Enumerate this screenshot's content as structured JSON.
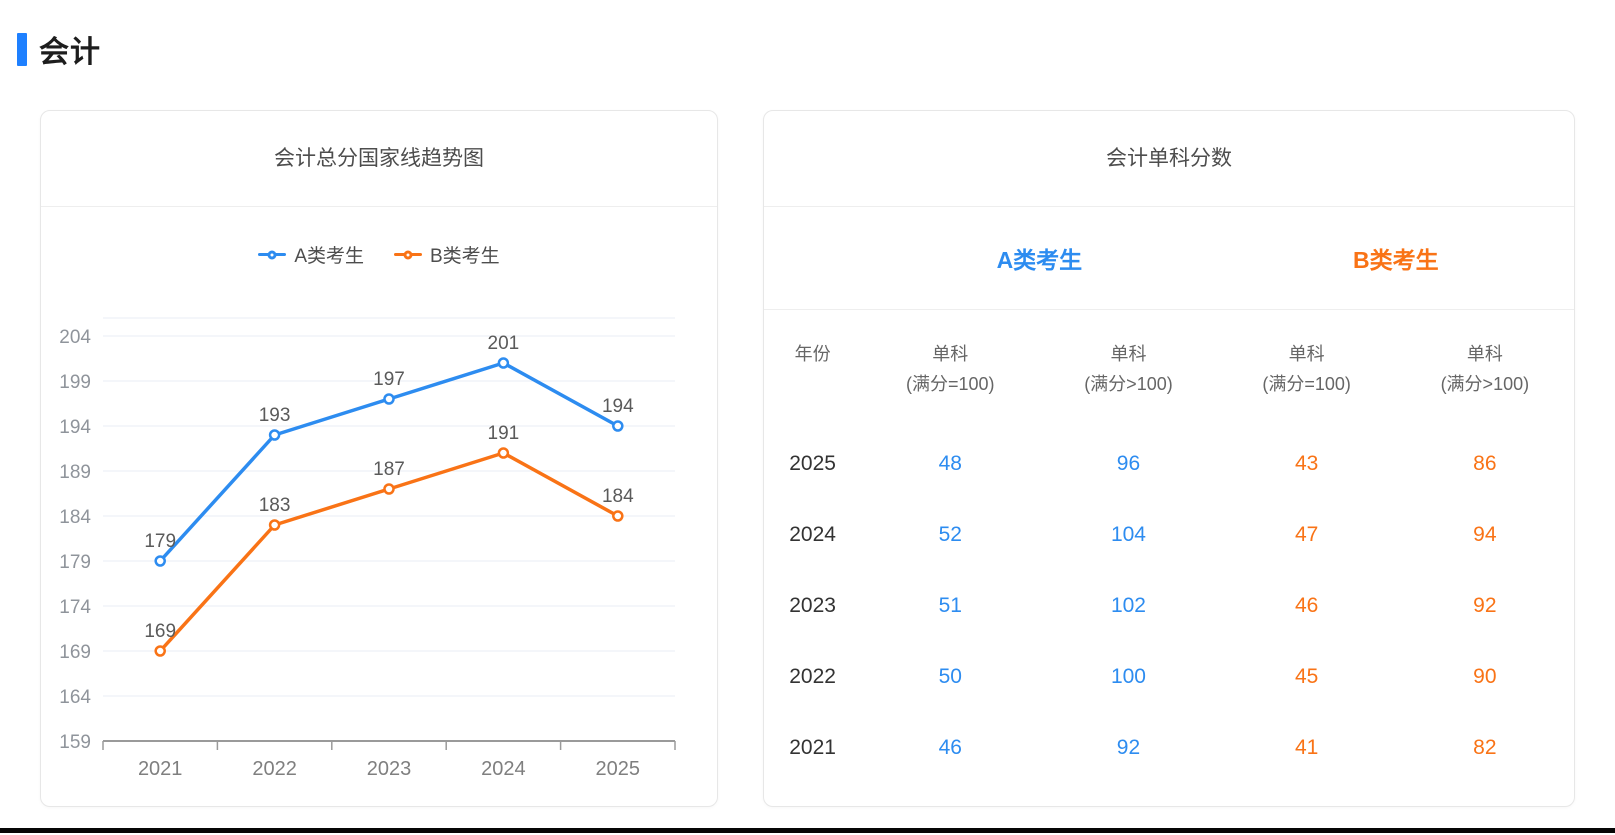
{
  "page": {
    "title": "会计",
    "accent_blue": "#1e80ff"
  },
  "chart_data": [
    {
      "type": "line",
      "title": "会计总分国家线趋势图",
      "categories": [
        "2021",
        "2022",
        "2023",
        "2024",
        "2025"
      ],
      "series": [
        {
          "name": "A类考生",
          "values": [
            179,
            193,
            197,
            201,
            194
          ],
          "color": "#2d8cf0"
        },
        {
          "name": "B类考生",
          "values": [
            169,
            183,
            187,
            191,
            184
          ],
          "color": "#f97316"
        }
      ],
      "xlabel": "",
      "ylabel": "",
      "ylim": [
        159,
        206
      ],
      "yticks": [
        159,
        164,
        169,
        174,
        179,
        184,
        189,
        194,
        199,
        204
      ],
      "grid": true,
      "legend_position": "top",
      "data_labels": true
    },
    {
      "type": "table",
      "title": "会计单科分数",
      "group_headers": [
        {
          "label": "A类考生",
          "color": "#2d8cf0"
        },
        {
          "label": "B类考生",
          "color": "#f97316"
        }
      ],
      "columns": [
        {
          "label": "年份",
          "sub": ""
        },
        {
          "label": "单科",
          "sub": "(满分=100)"
        },
        {
          "label": "单科",
          "sub": "(满分>100)"
        },
        {
          "label": "单科",
          "sub": "(满分=100)"
        },
        {
          "label": "单科",
          "sub": "(满分>100)"
        }
      ],
      "value_colors": [
        "#2d8cf0",
        "#2d8cf0",
        "#f97316",
        "#f97316"
      ],
      "rows": [
        {
          "year": "2025",
          "values": [
            "48",
            "96",
            "43",
            "86"
          ]
        },
        {
          "year": "2024",
          "values": [
            "52",
            "104",
            "47",
            "94"
          ]
        },
        {
          "year": "2023",
          "values": [
            "51",
            "102",
            "46",
            "92"
          ]
        },
        {
          "year": "2022",
          "values": [
            "50",
            "100",
            "45",
            "90"
          ]
        },
        {
          "year": "2021",
          "values": [
            "46",
            "92",
            "41",
            "82"
          ]
        }
      ]
    }
  ]
}
